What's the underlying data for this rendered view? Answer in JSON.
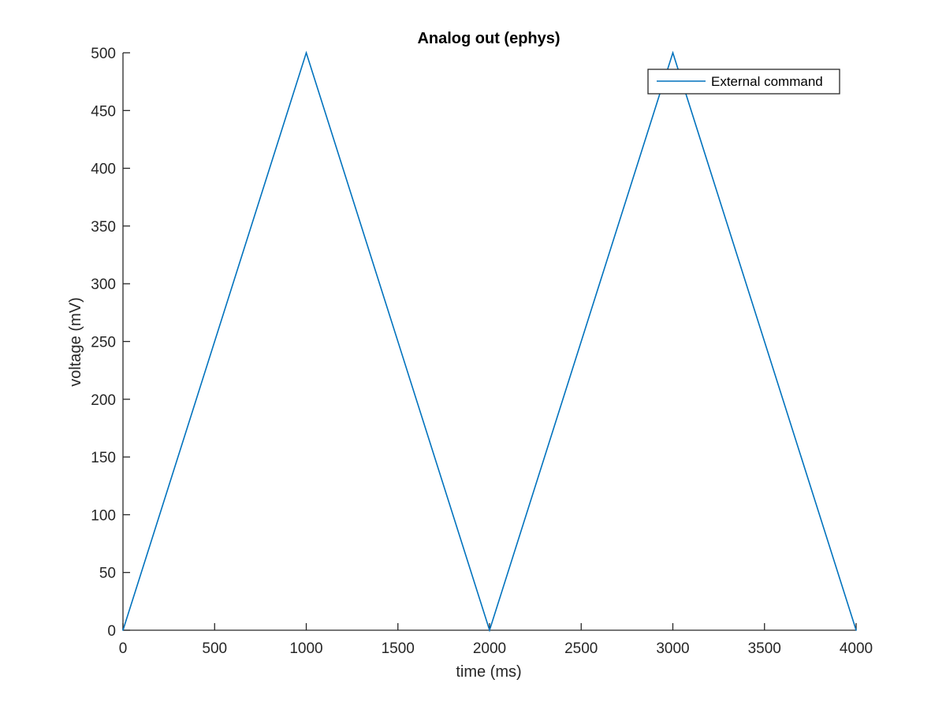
{
  "chart_data": {
    "type": "line",
    "title": "Analog out (ephys)",
    "xlabel": "time (ms)",
    "ylabel": "voltage (mV)",
    "xlim": [
      0,
      4000
    ],
    "ylim": [
      0,
      500
    ],
    "xticks": [
      "0",
      "500",
      "1000",
      "1500",
      "2000",
      "2500",
      "3000",
      "3500",
      "4000"
    ],
    "yticks": [
      "0",
      "50",
      "100",
      "150",
      "200",
      "250",
      "300",
      "350",
      "400",
      "450",
      "500"
    ],
    "grid": false,
    "legend_position": "top-right",
    "colors": {
      "line": "#0072BD",
      "axis": "#262626"
    },
    "series": [
      {
        "name": "External command",
        "x": [
          0,
          1000,
          2000,
          3000,
          4000
        ],
        "y": [
          0,
          500,
          0,
          500,
          0
        ]
      }
    ]
  }
}
